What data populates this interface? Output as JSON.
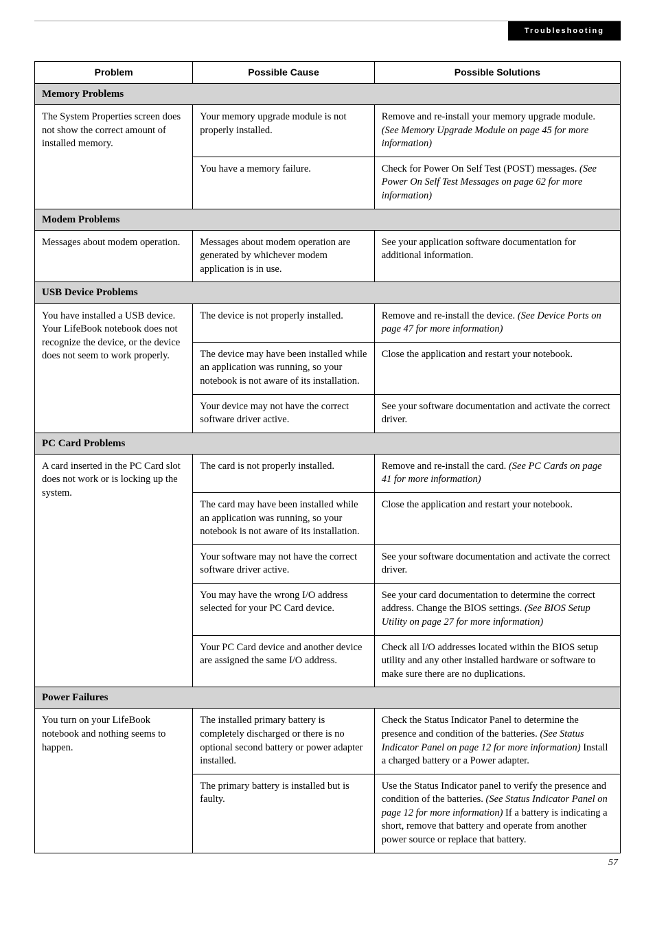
{
  "header": {
    "tab": "Troubleshooting"
  },
  "columns": {
    "problem": "Problem",
    "cause": "Possible Cause",
    "solutions": "Possible Solutions"
  },
  "sections": {
    "memory": "Memory Problems",
    "modem": "Modem Problems",
    "usb": "USB Device Problems",
    "pccard": "PC Card Problems",
    "power": "Power Failures"
  },
  "rows": {
    "mem_problem": "The System Properties screen does not show the correct amount of installed memory.",
    "mem_c1": "Your memory upgrade module is not properly installed.",
    "mem_s1a": "Remove and re-install your memory upgrade module. ",
    "mem_s1b": "(See Memory Upgrade Module on page 45 for more information)",
    "mem_c2": "You have a memory failure.",
    "mem_s2a": "Check for Power On Self Test (POST) messages. ",
    "mem_s2b": "(See Power On Self Test Messages on page 62 for more information)",
    "modem_problem": "Messages about modem operation.",
    "modem_c1": "Messages about modem operation are generated by whichever modem application is in use.",
    "modem_s1": "See your application software documentation for additional information.",
    "usb_problem": "You have installed a USB device. Your LifeBook notebook does not recognize the device, or the device does not seem to work properly.",
    "usb_c1": "The device is not properly installed.",
    "usb_s1a": "Remove and re-install the device. ",
    "usb_s1b": "(See Device Ports on page 47 for more information)",
    "usb_c2": "The device may have been installed while an application was running, so your notebook is not aware of its installation.",
    "usb_s2": "Close the application and restart your notebook.",
    "usb_c3": "Your device may not have the correct software driver active.",
    "usb_s3": "See your software documentation and activate the correct driver.",
    "pc_problem": "A card inserted in the PC Card slot does not work or is locking up the system.",
    "pc_c1": "The card is not properly installed.",
    "pc_s1a": "Remove and re-install the card. ",
    "pc_s1b": "(See PC Cards on page 41 for more information)",
    "pc_c2": "The card may have been installed while an application was running, so your notebook is not aware of its installation.",
    "pc_s2": "Close the application and restart your notebook.",
    "pc_c3": "Your software may not have the correct software driver active.",
    "pc_s3": "See your software documentation and activate the correct driver.",
    "pc_c4": "You may have the wrong I/O address selected for your PC Card device.",
    "pc_s4a": "See your card documentation to determine the correct address. Change the BIOS settings. ",
    "pc_s4b": "(See BIOS Setup Utility on page 27 for more information)",
    "pc_c5": "Your PC Card device and another device are assigned the same I/O address.",
    "pc_s5": "Check all I/O addresses located within the BIOS setup utility and any other installed hardware or software to make sure there are no duplications.",
    "pw_problem": "You turn on your LifeBook notebook and nothing seems to happen.",
    "pw_c1": "The installed primary battery is completely discharged or there is no optional second battery or power adapter installed.",
    "pw_s1a": "Check the Status Indicator Panel to determine the presence and condition of the batteries. ",
    "pw_s1b": "(See Status Indicator Panel on page 12 for more information)",
    "pw_s1c": " Install a charged battery or a Power adapter.",
    "pw_c2": "The primary battery is installed but is faulty.",
    "pw_s2a": "Use the Status Indicator panel to verify the presence and condition of the batteries. ",
    "pw_s2b": "(See Status Indicator Panel on page 12 for more information)",
    "pw_s2c": " If a battery is indicating a short, remove that battery and operate from another power source or replace that battery."
  },
  "pagenum": "57"
}
